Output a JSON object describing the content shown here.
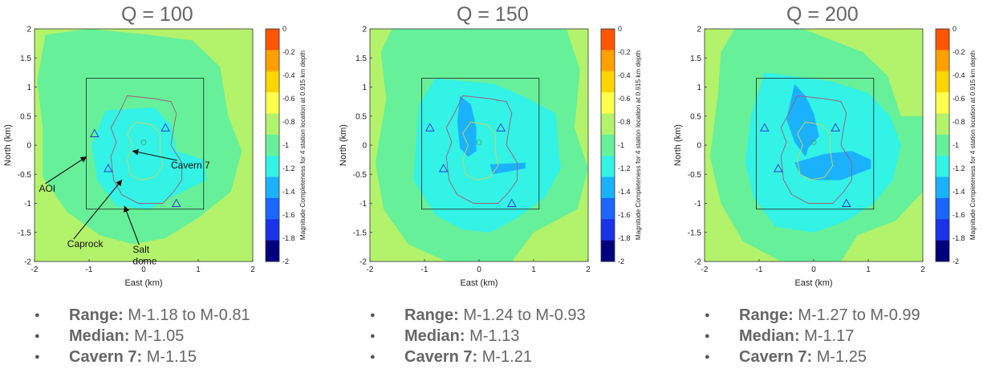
{
  "colorbar": {
    "label": "Magnitude Completeness for 4 station location at 0.915 km depth",
    "ticks": [
      "0",
      "-0.2",
      "-0.4",
      "-0.6",
      "-0.8",
      "-1",
      "-1.2",
      "-1.4",
      "-1.6",
      "-1.8",
      "-2"
    ],
    "colors": [
      "#ff5500",
      "#ffa000",
      "#ffd500",
      "#ffff4d",
      "#b3f26b",
      "#66f099",
      "#33f2e6",
      "#1ab2ff",
      "#1a66ff",
      "#1a33e6",
      "#00007f"
    ]
  },
  "chart_data": [
    {
      "type": "heatmap",
      "title": "Q = 100",
      "xlabel": "East (km)",
      "ylabel": "North (km)",
      "xlim": [
        -2,
        2
      ],
      "ylim": [
        -2,
        2
      ],
      "xticks": [
        "-2",
        "-1",
        "0",
        "1",
        "2"
      ],
      "yticks": [
        "2",
        "1.5",
        "1",
        "0.5",
        "0",
        "-0.5",
        "-1",
        "-1.5",
        "-2"
      ],
      "zlim": [
        -2,
        0
      ],
      "stations": [
        [
          -0.9,
          0.2
        ],
        [
          0.4,
          0.3
        ],
        [
          -0.65,
          -0.4
        ],
        [
          0.6,
          -1.0
        ]
      ],
      "annotations": [
        {
          "text": "AOI",
          "text_at": [
            -1.92,
            -0.8
          ],
          "arrow_to": [
            -1.05,
            -0.2
          ]
        },
        {
          "text": "Cavern 7",
          "text_at": [
            0.5,
            -0.4
          ],
          "arrow_to": [
            -0.2,
            -0.1
          ]
        },
        {
          "text": "Caprock",
          "text_at": [
            -1.4,
            -1.75
          ],
          "arrow_to": [
            -0.4,
            -0.6
          ]
        },
        {
          "text": "Salt",
          "text_at": [
            -0.2,
            -1.85
          ],
          "arrow_to": [
            -0.35,
            -1.05
          ]
        },
        {
          "text": "dome",
          "text_at": [
            -0.2,
            -2.05
          ],
          "arrow_to": null
        }
      ],
      "stats": {
        "range": "M-1.18 to M-0.81",
        "median": "M-1.05",
        "cavern7": "M-1.15"
      }
    },
    {
      "type": "heatmap",
      "title": "Q = 150",
      "xlabel": "East (km)",
      "ylabel": "North (km)",
      "xlim": [
        -2,
        2
      ],
      "ylim": [
        -2,
        2
      ],
      "xticks": [
        "-2",
        "-1",
        "0",
        "1",
        "2"
      ],
      "yticks": [
        "2",
        "1.5",
        "1",
        "0.5",
        "0",
        "-0.5",
        "-1",
        "-1.5",
        "-2"
      ],
      "zlim": [
        -2,
        0
      ],
      "stations": [
        [
          -0.9,
          0.3
        ],
        [
          0.4,
          0.3
        ],
        [
          -0.65,
          -0.4
        ],
        [
          0.6,
          -1.0
        ]
      ],
      "annotations": [],
      "stats": {
        "range": "M-1.24 to M-0.93",
        "median": "M-1.13",
        "cavern7": "M-1.21"
      }
    },
    {
      "type": "heatmap",
      "title": "Q = 200",
      "xlabel": "East (km)",
      "ylabel": "North (km)",
      "xlim": [
        -2,
        2
      ],
      "ylim": [
        -2,
        2
      ],
      "xticks": [
        "-2",
        "-1",
        "0",
        "1",
        "2"
      ],
      "yticks": [
        "2",
        "1.5",
        "1",
        "0.5",
        "0",
        "-0.5",
        "-1",
        "-1.5",
        "-2"
      ],
      "zlim": [
        -2,
        0
      ],
      "stations": [
        [
          -0.9,
          0.3
        ],
        [
          0.4,
          0.3
        ],
        [
          -0.65,
          -0.4
        ],
        [
          0.6,
          -1.0
        ]
      ],
      "annotations": [],
      "stats": {
        "range": "M-1.27 to M-0.99",
        "median": "M-1.17",
        "cavern7": "M-1.25"
      }
    }
  ],
  "labels": {
    "range": "Range:",
    "median": "Median:",
    "cavern7": "Cavern 7:"
  }
}
